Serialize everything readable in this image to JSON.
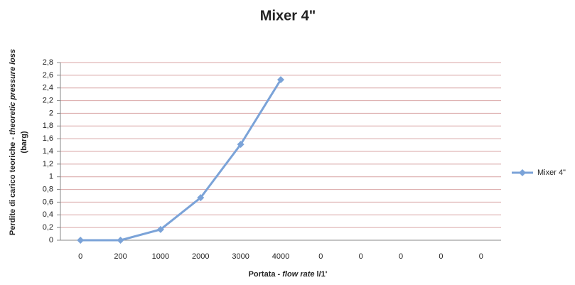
{
  "chart_data": {
    "type": "line",
    "title": "Mixer 4\"",
    "xlabel": [
      "Portata - ",
      "flow rate",
      " l/1'"
    ],
    "ylabel": [
      "Perdite di carico teoriche - ",
      "theoretic pressure loss",
      "(barg)"
    ],
    "categories": [
      "0",
      "200",
      "1000",
      "2000",
      "3000",
      "4000",
      "0",
      "0",
      "0",
      "0",
      "0"
    ],
    "series": [
      {
        "name": "Mixer 4\"",
        "color": "#7ba3d8",
        "values": [
          0,
          0,
          0.17,
          0.67,
          1.51,
          2.53,
          null,
          null,
          null,
          null,
          null
        ]
      }
    ],
    "ylim": [
      0,
      2.8
    ],
    "yticks": [
      0,
      {
        "value": 0.2,
        "label": "0,2"
      },
      {
        "value": 0.4,
        "label": "0,4"
      },
      {
        "value": 0.6,
        "label": "0,6"
      },
      {
        "value": 0.8,
        "label": "0,8"
      },
      1,
      {
        "value": 1.2,
        "label": "1,2"
      },
      {
        "value": 1.4,
        "label": "1,4"
      },
      {
        "value": 1.6,
        "label": "1,6"
      },
      {
        "value": 1.8,
        "label": "1,8"
      },
      2,
      {
        "value": 2.2,
        "label": "2,2"
      },
      {
        "value": 2.4,
        "label": "2,4"
      },
      {
        "value": 2.6,
        "label": "2,6"
      },
      {
        "value": 2.8,
        "label": "2,8"
      }
    ],
    "grid": true,
    "legend": "right"
  }
}
